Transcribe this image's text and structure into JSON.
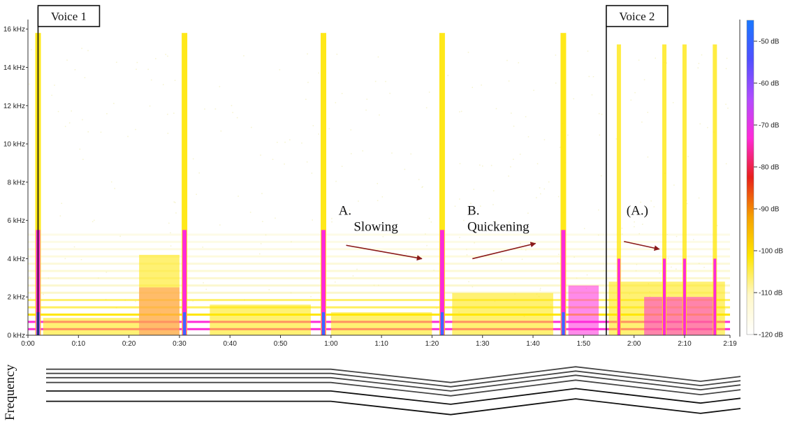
{
  "chart_data": [
    {
      "type": "heatmap",
      "title": "",
      "xlabel": "",
      "ylabel": "",
      "x_ticks": [
        "0:00",
        "0:10",
        "0:20",
        "0:30",
        "0:40",
        "0:50",
        "1:00",
        "1:10",
        "1:20",
        "1:30",
        "1:40",
        "1:50",
        "2:00",
        "2:10",
        "2:19"
      ],
      "x_tick_seconds": [
        0,
        10,
        20,
        30,
        40,
        50,
        60,
        70,
        80,
        90,
        100,
        110,
        120,
        130,
        139
      ],
      "xlim_seconds": [
        0,
        139
      ],
      "y_ticks": [
        "0 kHz",
        "2 kHz",
        "4 kHz",
        "6 kHz",
        "8 kHz",
        "10 kHz",
        "12 kHz",
        "14 kHz",
        "16 kHz"
      ],
      "y_tick_khz": [
        0,
        2,
        4,
        6,
        8,
        10,
        12,
        14,
        16
      ],
      "ylim_khz": [
        0,
        16.5
      ],
      "colorbar": {
        "ticks": [
          "-50 dB",
          "-60 dB",
          "-70 dB",
          "-80 dB",
          "-90 dB",
          "-100 dB",
          "-110 dB",
          "-120 dB"
        ],
        "tick_db": [
          -50,
          -60,
          -70,
          -80,
          -90,
          -100,
          -110,
          -120
        ],
        "range_db": [
          -120,
          -45
        ],
        "colors": [
          "#ffffff",
          "#fff8c8",
          "#ffe600",
          "#f5a000",
          "#e8201a",
          "#ff2ad8",
          "#b04cff",
          "#5050ff",
          "#1878ff"
        ]
      },
      "onsets_seconds": [
        2,
        31,
        58.5,
        82,
        106
      ],
      "markers": [
        {
          "label": "Voice 1",
          "time_seconds": 2
        },
        {
          "label": "Voice 2",
          "time_seconds": 114.5
        }
      ],
      "annotations": [
        {
          "letter": "A.",
          "label": "Slowing",
          "arrow_from_seconds": 63,
          "arrow_from_khz": 4.7,
          "arrow_to_seconds": 78,
          "arrow_to_khz": 4.0
        },
        {
          "letter": "B.",
          "label": "Quickening",
          "arrow_from_seconds": 88,
          "arrow_from_khz": 4.0,
          "arrow_to_seconds": 100.5,
          "arrow_to_khz": 4.8
        },
        {
          "letter": "(A.)",
          "label": "",
          "arrow_from_seconds": 118,
          "arrow_from_khz": 4.9,
          "arrow_to_seconds": 125,
          "arrow_to_khz": 4.5
        }
      ]
    },
    {
      "type": "line",
      "ylabel": "Frequency",
      "x_seconds": [
        0,
        57,
        81,
        106,
        131,
        139
      ],
      "series": [
        {
          "values": [
            6.0,
            6.0,
            3.8,
            6.4,
            4.0,
            4.8
          ]
        },
        {
          "values": [
            5.3,
            5.3,
            3.1,
            5.7,
            3.3,
            4.1
          ]
        },
        {
          "values": [
            4.6,
            4.6,
            2.4,
            5.0,
            2.6,
            3.4
          ]
        },
        {
          "values": [
            3.8,
            3.8,
            1.6,
            4.2,
            1.8,
            2.6
          ]
        },
        {
          "values": [
            2.4,
            2.4,
            0.2,
            2.8,
            0.4,
            1.2
          ]
        },
        {
          "values": [
            0.7,
            0.7,
            -1.5,
            1.1,
            -1.3,
            -0.5
          ]
        }
      ]
    }
  ]
}
